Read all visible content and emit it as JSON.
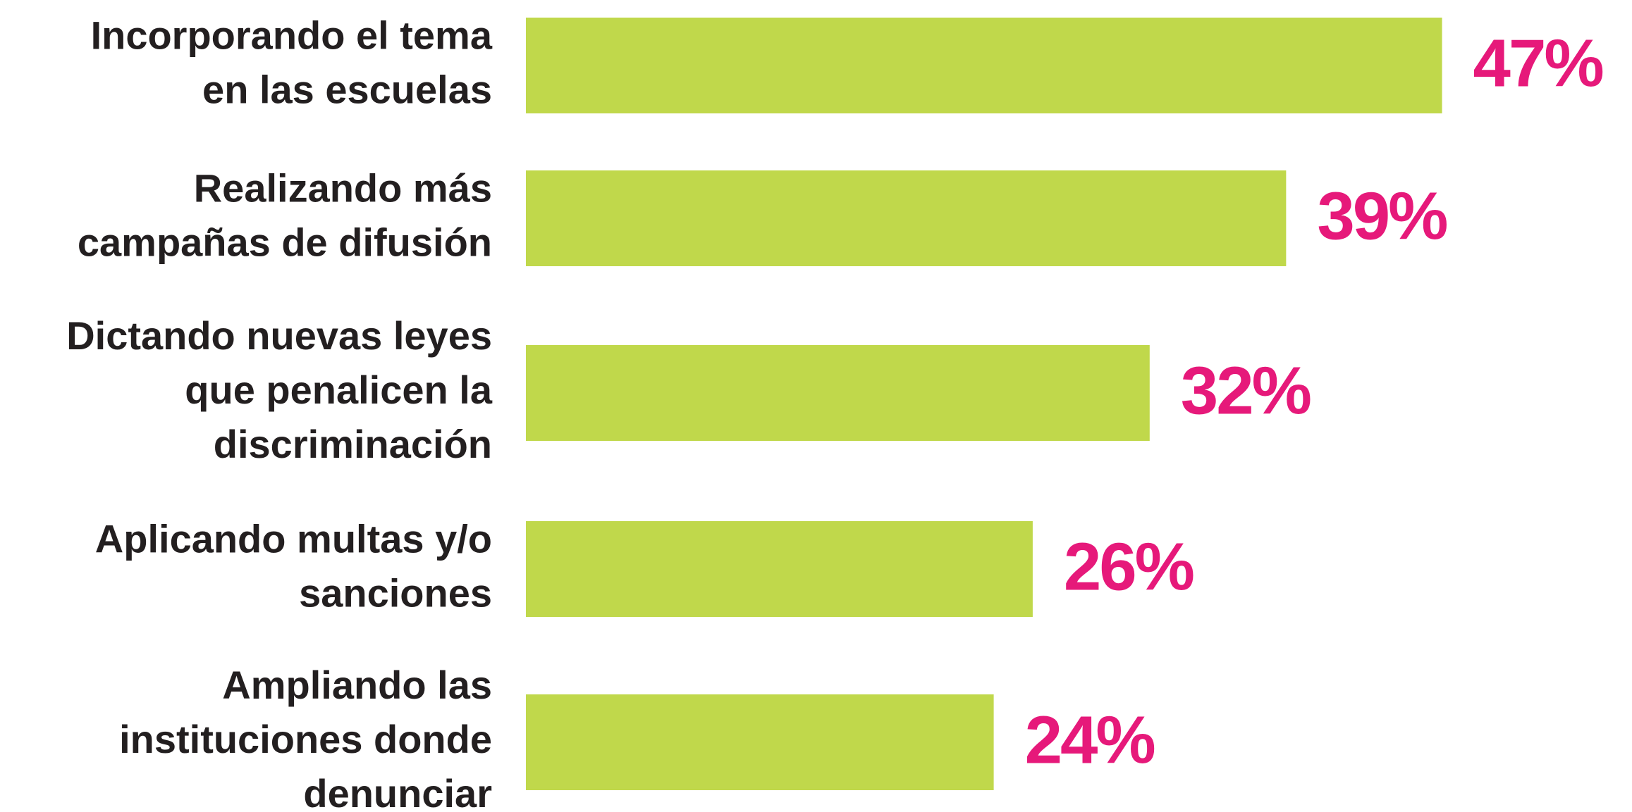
{
  "chart_data": {
    "type": "bar",
    "orientation": "horizontal",
    "categories": [
      "Incorporando el tema\nen las escuelas",
      "Realizando más\ncampañas de difusión",
      "Dictando nuevas leyes\nque penalicen la\ndiscriminación",
      "Aplicando multas y/o\nsanciones",
      "Ampliando las\ninstituciones donde\ndenunciar"
    ],
    "values": [
      47,
      39,
      32,
      26,
      24
    ],
    "value_labels": [
      "47%",
      "39%",
      "32%",
      "26%",
      "24%"
    ],
    "color": "#c0d84b",
    "label_color": "#e6197a"
  }
}
